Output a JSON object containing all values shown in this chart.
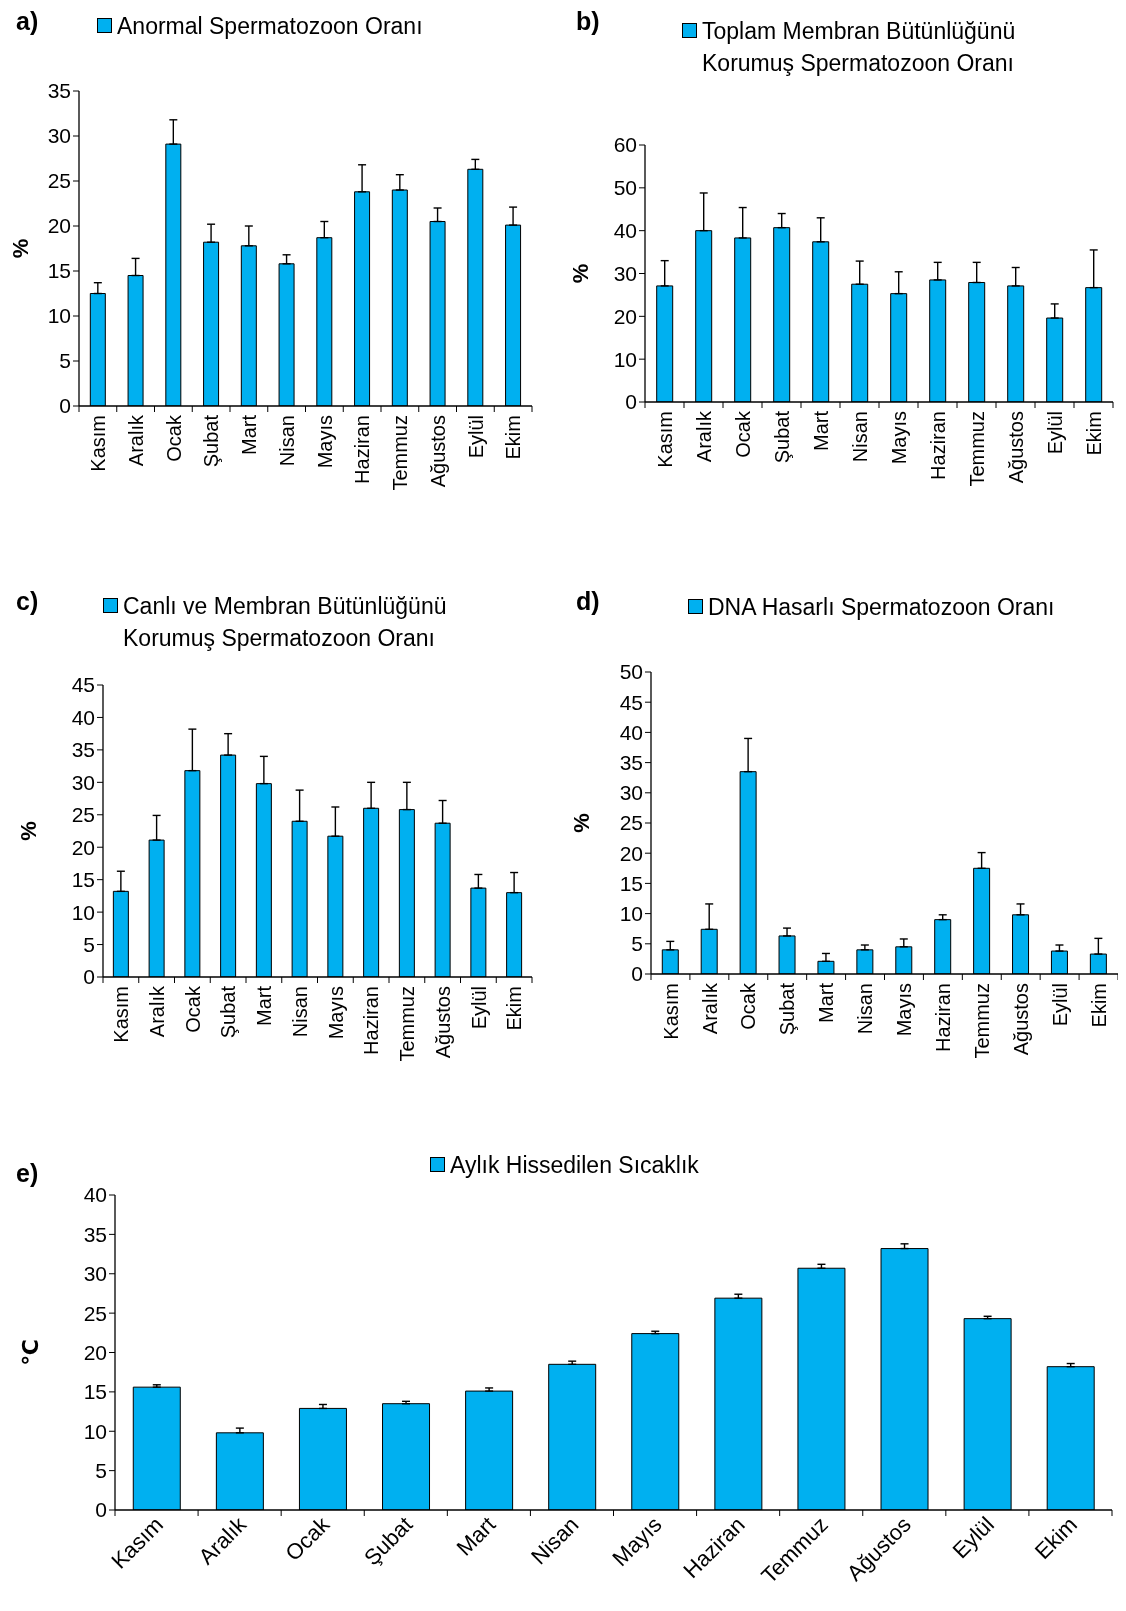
{
  "chart_data": [
    {
      "type": "bar",
      "title": "a)",
      "categories": [
        "Kasım",
        "Aralık",
        "Ocak",
        "Şubat",
        "Mart",
        "Nisan",
        "Mayıs",
        "Haziran",
        "Temmuz",
        "Ağustos",
        "Eylül",
        "Ekim"
      ],
      "series": [
        {
          "name": "Anormal Spermatozoon Oranı",
          "color": "#00b0f0",
          "values": [
            12.5,
            14.5,
            29.1,
            18.2,
            17.8,
            15.8,
            18.7,
            23.8,
            24.0,
            20.5,
            26.3,
            20.1
          ],
          "errors": [
            [
              12.5,
              13.7
            ],
            [
              14.5,
              16.4
            ],
            [
              29.1,
              31.8
            ],
            [
              18.2,
              20.2
            ],
            [
              17.8,
              20.0
            ],
            [
              15.8,
              16.8
            ],
            [
              18.7,
              20.5
            ],
            [
              23.8,
              26.8
            ],
            [
              24.0,
              25.7
            ],
            [
              20.5,
              22.0
            ],
            [
              26.3,
              27.4
            ],
            [
              20.1,
              22.1
            ]
          ]
        }
      ],
      "ylabel": "%",
      "ylim": [
        0,
        35
      ],
      "yticks": [
        0,
        5,
        10,
        15,
        20,
        25,
        30,
        35
      ],
      "legend": "top"
    },
    {
      "type": "bar",
      "title": "b)",
      "categories": [
        "Kasım",
        "Aralık",
        "Ocak",
        "Şubat",
        "Mart",
        "Nisan",
        "Mayıs",
        "Haziran",
        "Temmuz",
        "Ağustos",
        "Eylül",
        "Ekim"
      ],
      "series": [
        {
          "name": "Toplam Membran Bütünlüğünü Korumuş Spermatozoon Oranı",
          "color": "#00b0f0",
          "values": [
            27.1,
            40.0,
            38.3,
            40.7,
            37.4,
            27.5,
            25.3,
            28.5,
            27.9,
            27.1,
            19.6,
            26.7
          ],
          "errors": [
            [
              27.1,
              33.0
            ],
            [
              40.0,
              48.8
            ],
            [
              38.3,
              45.4
            ],
            [
              40.7,
              44.0
            ],
            [
              37.4,
              43.0
            ],
            [
              27.5,
              32.9
            ],
            [
              25.3,
              30.4
            ],
            [
              28.5,
              32.6
            ],
            [
              27.9,
              32.6
            ],
            [
              27.1,
              31.4
            ],
            [
              19.6,
              22.9
            ],
            [
              26.7,
              35.5
            ]
          ]
        }
      ],
      "ylabel": "%",
      "ylim": [
        0,
        60
      ],
      "yticks": [
        0,
        10,
        20,
        30,
        40,
        50,
        60
      ],
      "legend": "top"
    },
    {
      "type": "bar",
      "title": "c)",
      "categories": [
        "Kasım",
        "Aralık",
        "Ocak",
        "Şubat",
        "Mart",
        "Nisan",
        "Mayıs",
        "Haziran",
        "Temmuz",
        "Ağustos",
        "Eylül",
        "Ekim"
      ],
      "series": [
        {
          "name": "Canlı ve Membran Bütünlüğünü Korumuş Spermatozoon Oranı",
          "color": "#00b0f0",
          "values": [
            13.2,
            21.1,
            31.8,
            34.2,
            29.8,
            24.0,
            21.7,
            26.0,
            25.8,
            23.7,
            13.7,
            13.0
          ],
          "errors": [
            [
              13.2,
              16.3
            ],
            [
              21.1,
              24.9
            ],
            [
              31.8,
              38.2
            ],
            [
              34.2,
              37.5
            ],
            [
              29.8,
              34.0
            ],
            [
              24.0,
              28.8
            ],
            [
              21.7,
              26.2
            ],
            [
              26.0,
              30.0
            ],
            [
              25.8,
              30.0
            ],
            [
              23.7,
              27.2
            ],
            [
              13.7,
              15.8
            ],
            [
              13.0,
              16.1
            ]
          ]
        }
      ],
      "ylabel": "%",
      "ylim": [
        0,
        45
      ],
      "yticks": [
        0,
        5,
        10,
        15,
        20,
        25,
        30,
        35,
        40,
        45
      ],
      "legend": "top"
    },
    {
      "type": "bar",
      "title": "d)",
      "categories": [
        "Kasım",
        "Aralık",
        "Ocak",
        "Şubat",
        "Mart",
        "Nisan",
        "Mayıs",
        "Haziran",
        "Temmuz",
        "Ağustos",
        "Eylül",
        "Ekim"
      ],
      "series": [
        {
          "name": "DNA Hasarlı Spermatozoon Oranı",
          "color": "#00b0f0",
          "values": [
            4.0,
            7.4,
            33.5,
            6.3,
            2.1,
            4.0,
            4.5,
            9.0,
            17.5,
            9.8,
            3.8,
            3.3
          ],
          "errors": [
            [
              4.0,
              5.4
            ],
            [
              7.4,
              11.6
            ],
            [
              33.5,
              39.0
            ],
            [
              6.3,
              7.6
            ],
            [
              2.1,
              3.4
            ],
            [
              4.0,
              4.8
            ],
            [
              4.5,
              5.8
            ],
            [
              9.0,
              9.8
            ],
            [
              17.5,
              20.1
            ],
            [
              9.8,
              11.6
            ],
            [
              3.8,
              4.8
            ],
            [
              3.3,
              5.9
            ]
          ]
        }
      ],
      "ylabel": "%",
      "ylim": [
        0,
        50
      ],
      "yticks": [
        0,
        5,
        10,
        15,
        20,
        25,
        30,
        35,
        40,
        45,
        50
      ],
      "legend": "top"
    },
    {
      "type": "bar",
      "title": "e)",
      "categories": [
        "Kasım",
        "Aralık",
        "Ocak",
        "Şubat",
        "Mart",
        "Nisan",
        "Mayıs",
        "Haziran",
        "Temmuz",
        "Ağustos",
        "Eylül",
        "Ekim"
      ],
      "series": [
        {
          "name": "Aylık Hissedilen Sıcaklık",
          "color": "#00b0f0",
          "values": [
            15.6,
            9.8,
            12.9,
            13.5,
            15.1,
            18.5,
            22.4,
            26.9,
            30.7,
            33.2,
            24.3,
            18.2
          ],
          "errors": [
            [
              15.6,
              15.9
            ],
            [
              9.8,
              10.4
            ],
            [
              12.9,
              13.4
            ],
            [
              13.5,
              13.8
            ],
            [
              15.1,
              15.5
            ],
            [
              18.5,
              18.9
            ],
            [
              22.4,
              22.7
            ],
            [
              26.9,
              27.4
            ],
            [
              30.7,
              31.2
            ],
            [
              33.2,
              33.8
            ],
            [
              24.3,
              24.6
            ],
            [
              18.2,
              18.6
            ]
          ]
        }
      ],
      "ylabel": "℃",
      "ylim": [
        0,
        40
      ],
      "yticks": [
        0,
        5,
        10,
        15,
        20,
        25,
        30,
        35,
        40
      ],
      "legend": "top"
    }
  ]
}
